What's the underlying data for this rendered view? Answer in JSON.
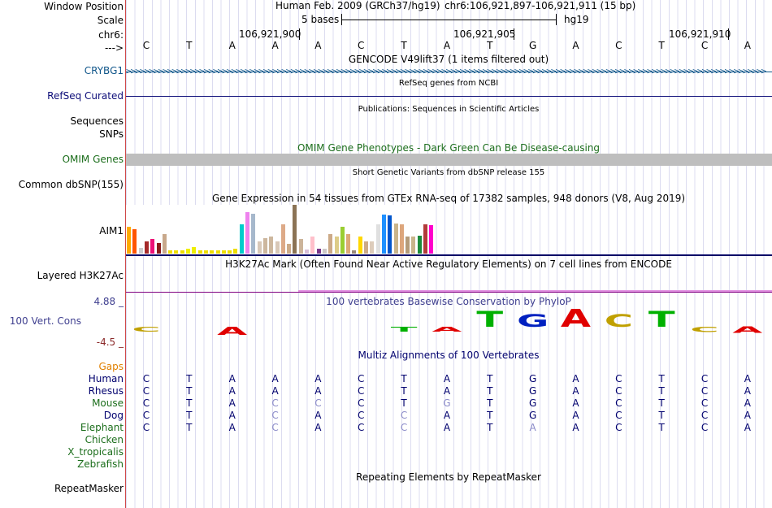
{
  "header": {
    "window_position_label": "Window Position",
    "scale_label": "Scale",
    "chrom_label": "chr6:",
    "arrow_label": "--->",
    "assembly": "Human Feb. 2009 (GRCh37/hg19)",
    "position": "chr6:106,921,897-106,921,911 (15 bp)",
    "scale_text": "5 bases",
    "db": "hg19",
    "coords": [
      "106,921,900",
      "106,921,905",
      "106,921,910"
    ],
    "sequence": [
      "C",
      "T",
      "A",
      "A",
      "A",
      "C",
      "T",
      "A",
      "T",
      "G",
      "A",
      "C",
      "T",
      "C",
      "A"
    ]
  },
  "tracks": {
    "gencode_title": "GENCODE V49lift37 (1 items filtered out)",
    "crybg1_label": "CRYBG1",
    "refseq_title": "RefSeq genes from NCBI",
    "refseq_label": "RefSeq Curated",
    "pubs_title": "Publications: Sequences in Scientific Articles",
    "sequences_label": "Sequences",
    "snps_label": "SNPs",
    "omim_title": "OMIM Gene Phenotypes - Dark Green Can Be Disease-causing",
    "omim_label": "OMIM Genes",
    "dbsnp_title": "Short Genetic Variants from dbSNP release 155",
    "dbsnp_label": "Common dbSNP(155)",
    "gtex_title": "Gene Expression in 54 tissues from GTEx RNA-seq of 17382 samples, 948 donors (V8, Aug 2019)",
    "gtex_label": "AIM1",
    "h3k27_title": "H3K27Ac Mark (Often Found Near Active Regulatory Elements) on 7 cell lines from ENCODE",
    "h3k27_label": "Layered H3K27Ac",
    "phylop_title": "100 vertebrates Basewise Conservation by PhyloP",
    "phylop_label": "100 Vert. Cons",
    "phylop_max": "4.88 _",
    "phylop_min": "-4.5 _",
    "multiz_title": "Multiz Alignments of 100 Vertebrates",
    "gaps_label": "Gaps",
    "repeat_title": "Repeating Elements by RepeatMasker",
    "repeat_label": "RepeatMasker"
  },
  "phylop_logo": [
    {
      "base": "C",
      "score": -0.4
    },
    {
      "base": "",
      "score": 0
    },
    {
      "base": "A",
      "score": -0.9
    },
    {
      "base": "",
      "score": 0
    },
    {
      "base": "",
      "score": 0
    },
    {
      "base": "",
      "score": 0
    },
    {
      "base": "T",
      "score": -0.2
    },
    {
      "base": "A",
      "score": -0.3
    },
    {
      "base": "T",
      "score": 1.8
    },
    {
      "base": "G",
      "score": 1.4
    },
    {
      "base": "A",
      "score": 2.0
    },
    {
      "base": "C",
      "score": 1.4
    },
    {
      "base": "T",
      "score": 1.8
    },
    {
      "base": "C",
      "score": -0.6
    },
    {
      "base": "A",
      "score": -0.7
    }
  ],
  "colors": {
    "gencode": "#10568a",
    "refseq": "#0c0c78",
    "omim": "#1c6e1c",
    "h3k27": "#800080",
    "phylop": "#404090",
    "gaps": "#e08000",
    "species_a": "#00006e",
    "species_b": "#1c6e1c"
  },
  "alignments": [
    {
      "species": "Human",
      "seq": [
        "C",
        "T",
        "A",
        "A",
        "A",
        "C",
        "T",
        "A",
        "T",
        "G",
        "A",
        "C",
        "T",
        "C",
        "A"
      ],
      "dim": []
    },
    {
      "species": "Rhesus",
      "seq": [
        "C",
        "T",
        "A",
        "A",
        "A",
        "C",
        "T",
        "A",
        "T",
        "G",
        "A",
        "C",
        "T",
        "C",
        "A"
      ],
      "dim": []
    },
    {
      "species": "Mouse",
      "seq": [
        "C",
        "T",
        "A",
        "C",
        "C",
        "C",
        "T",
        "G",
        "T",
        "G",
        "A",
        "C",
        "T",
        "C",
        "A"
      ],
      "dim": [
        3,
        4,
        7
      ]
    },
    {
      "species": "Dog",
      "seq": [
        "C",
        "T",
        "A",
        "C",
        "A",
        "C",
        "C",
        "A",
        "T",
        "G",
        "A",
        "C",
        "T",
        "C",
        "A"
      ],
      "dim": [
        3,
        6
      ]
    },
    {
      "species": "Elephant",
      "seq": [
        "C",
        "T",
        "A",
        "C",
        "A",
        "C",
        "C",
        "A",
        "T",
        "A",
        "A",
        "C",
        "T",
        "C",
        "A"
      ],
      "dim": [
        3,
        6,
        9
      ]
    },
    {
      "species": "Chicken",
      "seq": [],
      "dim": []
    },
    {
      "species": "X_tropicalis",
      "seq": [],
      "dim": []
    },
    {
      "species": "Zebrafish",
      "seq": [],
      "dim": []
    }
  ],
  "gtex_values": [
    {
      "v": 0.55,
      "c": "#ffaa00"
    },
    {
      "v": 0.5,
      "c": "#ff5500"
    },
    {
      "v": 0.12,
      "c": "#cccccc"
    },
    {
      "v": 0.25,
      "c": "#a52a2a"
    },
    {
      "v": 0.3,
      "c": "#ee1177"
    },
    {
      "v": 0.22,
      "c": "#8b1a1a"
    },
    {
      "v": 0.4,
      "c": "#c8a88b"
    },
    {
      "v": 0.06,
      "c": "#eedd00"
    },
    {
      "v": 0.06,
      "c": "#eedd00"
    },
    {
      "v": 0.06,
      "c": "#eedd00"
    },
    {
      "v": 0.1,
      "c": "#eeee00"
    },
    {
      "v": 0.14,
      "c": "#eeee00"
    },
    {
      "v": 0.06,
      "c": "#eedd00"
    },
    {
      "v": 0.06,
      "c": "#eedd00"
    },
    {
      "v": 0.06,
      "c": "#eedd00"
    },
    {
      "v": 0.06,
      "c": "#eedd00"
    },
    {
      "v": 0.06,
      "c": "#eedd00"
    },
    {
      "v": 0.06,
      "c": "#eedd00"
    },
    {
      "v": 0.1,
      "c": "#eedd00"
    },
    {
      "v": 0.6,
      "c": "#00cccc"
    },
    {
      "v": 0.85,
      "c": "#ee82ee"
    },
    {
      "v": 0.82,
      "c": "#a6b8cc"
    },
    {
      "v": 0.25,
      "c": "#d8c8b8"
    },
    {
      "v": 0.32,
      "c": "#cdb79e"
    },
    {
      "v": 0.35,
      "c": "#cdb79e"
    },
    {
      "v": 0.25,
      "c": "#d8c8b8"
    },
    {
      "v": 0.6,
      "c": "#ddaa88"
    },
    {
      "v": 0.2,
      "c": "#ccaa88"
    },
    {
      "v": 1.0,
      "c": "#8b7355"
    },
    {
      "v": 0.3,
      "c": "#ccb49a"
    },
    {
      "v": 0.08,
      "c": "#d8bfd8"
    },
    {
      "v": 0.35,
      "c": "#ffc0cb"
    },
    {
      "v": 0.1,
      "c": "#7a378b"
    },
    {
      "v": 0.1,
      "c": "#cdc9c9"
    },
    {
      "v": 0.4,
      "c": "#ccaa88"
    },
    {
      "v": 0.35,
      "c": "#ddcc88"
    },
    {
      "v": 0.55,
      "c": "#9ace32"
    },
    {
      "v": 0.4,
      "c": "#ddaa77"
    },
    {
      "v": 0.06,
      "c": "#998877"
    },
    {
      "v": 0.35,
      "c": "#ffd700"
    },
    {
      "v": 0.25,
      "c": "#ccaa88"
    },
    {
      "v": 0.25,
      "c": "#ddccbb"
    },
    {
      "v": 0.6,
      "c": "#e0e0e0"
    },
    {
      "v": 0.8,
      "c": "#1e90ff"
    },
    {
      "v": 0.78,
      "c": "#0055cc"
    },
    {
      "v": 0.62,
      "c": "#c8b48b"
    },
    {
      "v": 0.6,
      "c": "#dda67c"
    },
    {
      "v": 0.35,
      "c": "#b49b7a"
    },
    {
      "v": 0.35,
      "c": "#c8b48b"
    },
    {
      "v": 0.36,
      "c": "#1b8b3b"
    },
    {
      "v": 0.6,
      "c": "#b23a3a"
    },
    {
      "v": 0.58,
      "c": "#ff00cc"
    }
  ]
}
